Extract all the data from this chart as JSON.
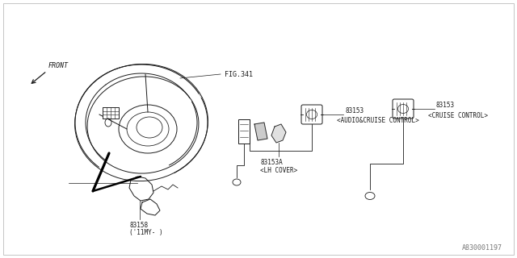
{
  "bg_color": "#ffffff",
  "line_color": "#1a1a1a",
  "light_line": "#aaaaaa",
  "text_color": "#1a1a1a",
  "fig_width": 6.4,
  "fig_height": 3.2,
  "dpi": 100,
  "watermark": "A830001197",
  "front_label": "FRONT",
  "fig341_label": "FIG.341",
  "part1_num": "83153",
  "part1_desc": "<AUDIO&CRUISE CONTROL>",
  "part2_num": "83153",
  "part2_desc": "<CRUISE CONTROL>",
  "part3_num": "83153A",
  "part3_desc": "<LH COVER>",
  "part4_num": "83158",
  "part4_desc": "('11MY- )",
  "font_size": 5.5,
  "font_size_wm": 6.0
}
